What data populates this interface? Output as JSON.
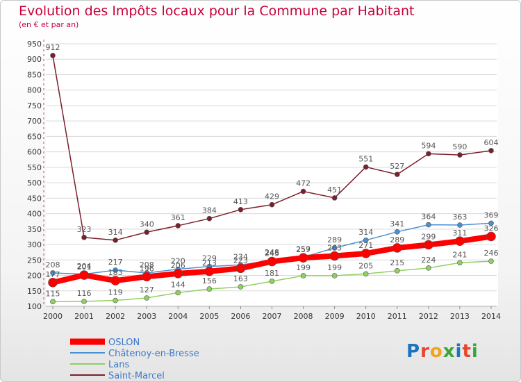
{
  "title": "Evolution des Impôts locaux pour la Commune par Habitant",
  "subtitle": "(en € et par an)",
  "logo": {
    "text": "Proxiti",
    "colors": [
      "#1e73be",
      "#e8462a",
      "#f2a21c",
      "#3aa63a",
      "#1e73be",
      "#e8462a",
      "#3aa63a"
    ]
  },
  "chart_data": {
    "type": "line",
    "x": [
      2000,
      2001,
      2002,
      2003,
      2004,
      2005,
      2006,
      2007,
      2008,
      2009,
      2010,
      2011,
      2012,
      2013,
      2014
    ],
    "ylim": [
      100,
      950
    ],
    "yticks": [
      100,
      150,
      200,
      250,
      300,
      350,
      400,
      450,
      500,
      550,
      600,
      650,
      700,
      750,
      800,
      850,
      900,
      950
    ],
    "legend_position": "bottom-left",
    "series": [
      {
        "name": "OSLON",
        "color": "#ff0000",
        "values": [
          177,
          201,
          183,
          196,
          206,
          213,
          223,
          245,
          257,
          263,
          271,
          289,
          299,
          311,
          326
        ],
        "labels": [
          "177",
          "201",
          "183",
          "196",
          "206",
          "213",
          "223",
          "245",
          "257",
          "263",
          "271",
          "289",
          "299",
          "311",
          "326"
        ]
      },
      {
        "name": "Châtenoy-en-Bresse",
        "color": "#4a90d0",
        "values": [
          208,
          204,
          217,
          208,
          220,
          229,
          234,
          248,
          259,
          289,
          314,
          341,
          364,
          363,
          369
        ],
        "labels": [
          "208",
          "204",
          "217",
          "208",
          "220",
          "229",
          "234",
          "248",
          "259",
          "289",
          "314",
          "341",
          "364",
          "363",
          "369"
        ]
      },
      {
        "name": "Lans",
        "color": "#90d060",
        "values": [
          115,
          116,
          119,
          127,
          144,
          156,
          163,
          181,
          199,
          199,
          205,
          215,
          224,
          241,
          246
        ],
        "labels": [
          "115",
          "116",
          "119",
          "127",
          "144",
          "156",
          "163",
          "181",
          "199",
          "199",
          "205",
          "215",
          "224",
          "241",
          "246"
        ]
      },
      {
        "name": "Saint-Marcel",
        "color": "#7a1f2b",
        "values": [
          912,
          323,
          314,
          340,
          361,
          384,
          413,
          429,
          472,
          451,
          551,
          527,
          594,
          590,
          604
        ],
        "labels": [
          "912",
          "323",
          "314",
          "340",
          "361",
          "384",
          "413",
          "429",
          "472",
          "451",
          "551",
          "527",
          "594",
          "590",
          "604"
        ]
      }
    ]
  }
}
